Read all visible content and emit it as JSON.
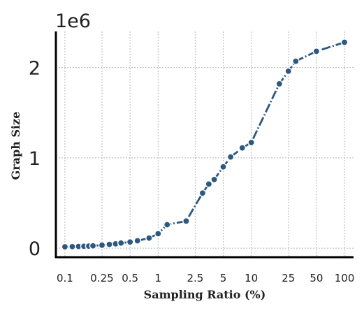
{
  "chart_data": {
    "type": "line",
    "xlabel": "Sampling Ratio (%)",
    "ylabel": "Graph Size",
    "y_offset_label": "1e6",
    "x_scale": "log",
    "xlim": [
      0.08,
      125
    ],
    "ylim": [
      -100000,
      2400000
    ],
    "x_ticks": [
      0.1,
      0.25,
      0.5,
      1,
      2.5,
      5,
      10,
      25,
      50,
      100
    ],
    "x_tick_labels": [
      "0.1",
      "0.25",
      "0.5",
      "1",
      "2.5",
      "5",
      "10",
      "25",
      "50",
      "100"
    ],
    "y_ticks": [
      0,
      1000000,
      2000000
    ],
    "y_tick_labels": [
      "0",
      "1",
      "2"
    ],
    "grid": true,
    "line_style": "dash-dot",
    "marker": "circle",
    "color": "#2d5880",
    "series": [
      {
        "x": [
          0.1,
          0.12,
          0.14,
          0.16,
          0.18,
          0.2,
          0.25,
          0.3,
          0.35,
          0.4,
          0.5,
          0.6,
          0.8,
          1,
          1.25,
          2,
          3,
          3.5,
          4,
          5,
          6,
          8,
          10,
          20,
          25,
          30,
          50,
          100
        ],
        "y": [
          15000,
          17000,
          19000,
          21000,
          23000,
          26000,
          33000,
          41000,
          48000,
          57000,
          68000,
          82000,
          112000,
          160000,
          260000,
          300000,
          610000,
          710000,
          760000,
          900000,
          1010000,
          1110000,
          1170000,
          1820000,
          1960000,
          2070000,
          2180000,
          2280000
        ]
      }
    ]
  }
}
